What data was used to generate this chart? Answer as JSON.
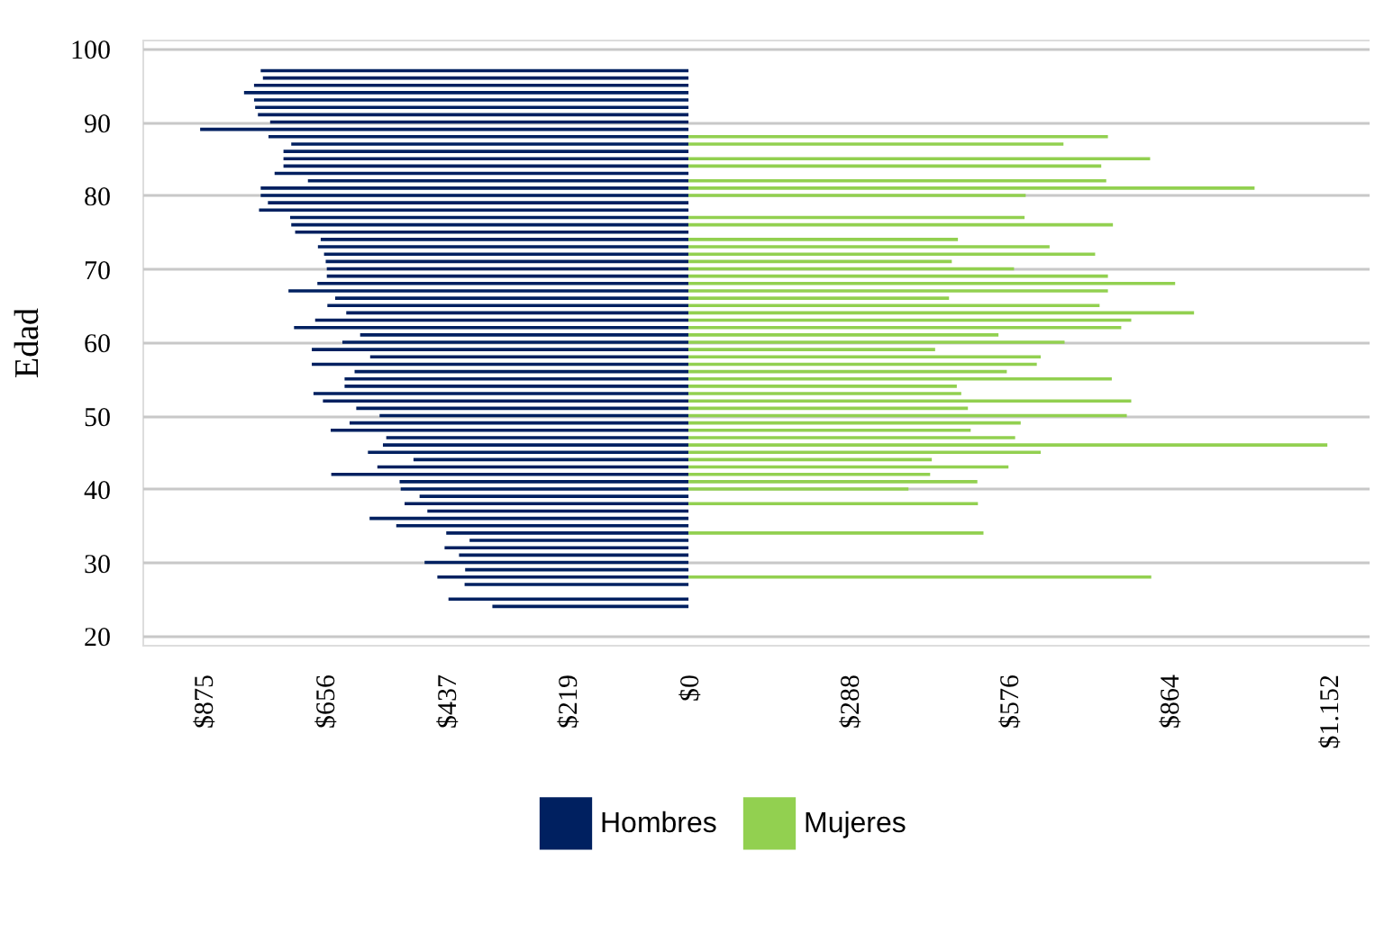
{
  "chart_data": {
    "type": "bar",
    "orientation": "horizontal",
    "ylabel": "Edad",
    "x": [
      24,
      25,
      26,
      27,
      28,
      29,
      30,
      31,
      32,
      33,
      34,
      35,
      36,
      37,
      38,
      39,
      40,
      41,
      42,
      43,
      44,
      45,
      46,
      47,
      48,
      49,
      50,
      51,
      52,
      53,
      54,
      55,
      56,
      57,
      58,
      59,
      60,
      61,
      62,
      63,
      64,
      65,
      66,
      67,
      68,
      69,
      70,
      71,
      72,
      73,
      74,
      75,
      76,
      77,
      78,
      79,
      80,
      81,
      82,
      83,
      84,
      85,
      86,
      87,
      88,
      89,
      90,
      91,
      92,
      93,
      94,
      95,
      96,
      97
    ],
    "series": [
      {
        "name": "Hombres",
        "color": "#002060",
        "values": [
          -353,
          -432,
          null,
          -403,
          -452,
          -402,
          -475,
          -413,
          -439,
          -394,
          -436,
          -526,
          -574,
          -470,
          -511,
          -484,
          -518,
          -520,
          -643,
          -560,
          -495,
          -577,
          -550,
          -544,
          -644,
          -610,
          -556,
          -598,
          -658,
          -675,
          -619,
          -619,
          -601,
          -678,
          -573,
          -678,
          -623,
          -591,
          -710,
          -672,
          -616,
          -650,
          -636,
          -720,
          -668,
          -651,
          -651,
          -653,
          -656,
          -667,
          -662,
          -708,
          -715,
          -717,
          -773,
          -757,
          -770,
          -770,
          -685,
          -745,
          -729,
          -729,
          -729,
          -715,
          -756,
          -879,
          -753,
          -775,
          -780,
          -782,
          -800,
          -782,
          -766,
          -770
        ]
      },
      {
        "name": "Mujeres",
        "color": "#92d050",
        "values": [
          null,
          null,
          null,
          null,
          833,
          null,
          null,
          null,
          null,
          null,
          531,
          null,
          null,
          null,
          521,
          null,
          396,
          520,
          435,
          576,
          438,
          634,
          1150,
          588,
          508,
          598,
          789,
          503,
          797,
          491,
          483,
          762,
          573,
          627,
          634,
          444,
          677,
          558,
          779,
          797,
          910,
          740,
          469,
          755,
          876,
          755,
          586,
          474,
          732,
          650,
          485,
          null,
          764,
          605,
          null,
          null,
          607,
          1019,
          752,
          null,
          743,
          831,
          null,
          675,
          755,
          null,
          null,
          null,
          null,
          null,
          null,
          null,
          null,
          null
        ]
      }
    ],
    "xlim": [
      -983,
      1226
    ],
    "xticks": [
      {
        "value": -875,
        "label": "$875"
      },
      {
        "value": -656,
        "label": "$656"
      },
      {
        "value": -437,
        "label": "$437"
      },
      {
        "value": -219,
        "label": "$219"
      },
      {
        "value": 0,
        "label": "$0"
      },
      {
        "value": 288,
        "label": "$288"
      },
      {
        "value": 576,
        "label": "$576"
      },
      {
        "value": 864,
        "label": "$864"
      },
      {
        "value": 1152,
        "label": "$1.152"
      }
    ],
    "ylim": [
      20,
      100
    ],
    "yticks": [
      20,
      30,
      40,
      50,
      60,
      70,
      80,
      90,
      100
    ],
    "grid": "y",
    "legend": "bottom"
  }
}
